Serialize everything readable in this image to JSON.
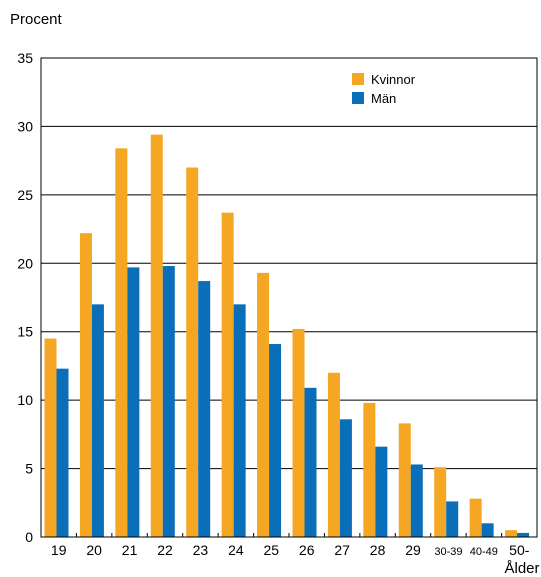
{
  "chart_data": {
    "type": "bar",
    "ylabel": "Procent",
    "xlabel": "Ålder",
    "ylim": [
      0,
      35
    ],
    "yticks": [
      0,
      5,
      10,
      15,
      20,
      25,
      30,
      35
    ],
    "grid": true,
    "legend_placement": "top-right",
    "categories": [
      "19",
      "20",
      "21",
      "22",
      "23",
      "24",
      "25",
      "26",
      "27",
      "28",
      "29",
      "30-39",
      "40-49",
      "50-"
    ],
    "series": [
      {
        "name": "Kvinnor",
        "color": "#F5A623",
        "values": [
          14.5,
          22.2,
          28.4,
          29.4,
          27.0,
          23.7,
          19.3,
          15.2,
          12.0,
          9.8,
          8.3,
          5.1,
          2.8,
          0.5
        ]
      },
      {
        "name": "Män",
        "color": "#0A6EB9",
        "values": [
          12.3,
          17.0,
          19.7,
          19.8,
          18.7,
          17.0,
          14.1,
          10.9,
          8.6,
          6.6,
          5.3,
          2.6,
          1.0,
          0.3
        ]
      }
    ]
  }
}
